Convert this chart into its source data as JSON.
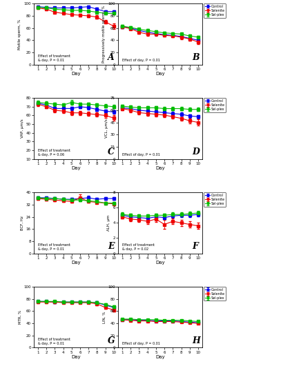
{
  "days": [
    1,
    2,
    3,
    4,
    5,
    6,
    7,
    8,
    9,
    10
  ],
  "panels": [
    {
      "label": "A",
      "ylabel": "Motile sperm, %",
      "effect_line1": "Effect of treatment",
      "effect_line2": "& day, P = 0.01",
      "ylim": [
        0,
        100
      ],
      "yticks": [
        0,
        20,
        40,
        60,
        80,
        100
      ],
      "control": [
        95,
        94,
        93,
        93,
        93,
        94,
        95,
        91,
        87,
        87
      ],
      "selenite": [
        93,
        91,
        86,
        84,
        82,
        81,
        80,
        78,
        70,
        63
      ],
      "selplex": [
        94,
        93,
        91,
        90,
        89,
        89,
        88,
        86,
        84,
        84
      ],
      "control_err": [
        1.5,
        1.5,
        1.5,
        1.5,
        1.5,
        1.5,
        1.5,
        2,
        2,
        2
      ],
      "selenite_err": [
        1.5,
        2,
        2,
        2,
        2,
        2,
        2,
        3,
        3,
        4
      ],
      "selplex_err": [
        1.5,
        1.5,
        1.5,
        1.5,
        1.5,
        2,
        2,
        2,
        2,
        2
      ]
    },
    {
      "label": "B",
      "ylabel": "Progressively motile sperm, %",
      "effect_line1": "Effect of day, P = 0.01",
      "effect_line2": "",
      "ylim": [
        0,
        100
      ],
      "yticks": [
        0,
        20,
        40,
        60,
        80,
        100
      ],
      "control": [
        62,
        60,
        56,
        53,
        51,
        49,
        48,
        46,
        43,
        40
      ],
      "selenite": [
        62,
        59,
        53,
        50,
        50,
        48,
        47,
        45,
        42,
        37
      ],
      "selplex": [
        63,
        61,
        58,
        56,
        54,
        52,
        51,
        50,
        47,
        45
      ],
      "control_err": [
        2,
        2,
        2,
        2,
        2,
        2,
        2,
        2,
        2,
        2
      ],
      "selenite_err": [
        2,
        2,
        2.5,
        2.5,
        2.5,
        2.5,
        2.5,
        3,
        3,
        3
      ],
      "selplex_err": [
        2,
        2,
        2,
        2,
        2,
        2,
        2,
        2,
        2,
        2
      ]
    },
    {
      "label": "C",
      "ylabel": "VAP, μm/s",
      "effect_line1": "Effect of treatment",
      "effect_line2": "& day, P = 0.06",
      "ylim": [
        10,
        80
      ],
      "yticks": [
        10,
        20,
        30,
        40,
        50,
        60,
        70,
        80
      ],
      "control": [
        74,
        72,
        68,
        68,
        68,
        70,
        69,
        67,
        65,
        64
      ],
      "selenite": [
        73,
        70,
        66,
        65,
        63,
        63,
        62,
        61,
        60,
        57
      ],
      "selplex": [
        75,
        74,
        73,
        72,
        75,
        73,
        73,
        72,
        71,
        70
      ],
      "control_err": [
        2,
        2,
        2,
        2,
        2,
        2,
        2,
        2,
        2,
        2
      ],
      "selenite_err": [
        2,
        2,
        2.5,
        2.5,
        2.5,
        2.5,
        2.5,
        2.5,
        2.5,
        3
      ],
      "selplex_err": [
        2,
        2,
        2,
        2,
        3,
        2,
        2,
        2,
        2,
        2
      ]
    },
    {
      "label": "D",
      "ylabel": "VCL, μm/s",
      "effect_line1": "Effect of day, P = 0.01",
      "effect_line2": "",
      "ylim": [
        0,
        75
      ],
      "yticks": [
        0,
        15,
        30,
        45,
        60,
        75
      ],
      "control": [
        63,
        62,
        60,
        59,
        58,
        57,
        56,
        55,
        53,
        52
      ],
      "selenite": [
        62,
        60,
        57,
        56,
        55,
        54,
        52,
        50,
        47,
        45
      ],
      "selplex": [
        65,
        64,
        63,
        63,
        63,
        62,
        62,
        62,
        61,
        61
      ],
      "control_err": [
        2,
        2,
        2,
        2,
        2,
        2,
        2,
        2,
        2,
        2
      ],
      "selenite_err": [
        2,
        2.5,
        2.5,
        2.5,
        2.5,
        2.5,
        2.5,
        3,
        3,
        3.5
      ],
      "selplex_err": [
        2,
        2,
        2,
        2,
        2,
        2,
        2,
        2,
        2,
        2
      ]
    },
    {
      "label": "E",
      "ylabel": "BCF, Hz",
      "effect_line1": "Effect of treatment",
      "effect_line2": "& day, P = 0.01",
      "ylim": [
        0,
        40
      ],
      "yticks": [
        0,
        8,
        16,
        24,
        32,
        40
      ],
      "control": [
        36.5,
        36.5,
        36,
        35.5,
        35.5,
        36,
        36.5,
        35.5,
        36,
        36
      ],
      "selenite": [
        36,
        35.5,
        35,
        34.5,
        34,
        36.5,
        34,
        33.5,
        33,
        32.5
      ],
      "selplex": [
        36.5,
        36,
        36,
        35.5,
        35,
        35,
        34.5,
        34,
        33,
        33
      ],
      "control_err": [
        0.8,
        0.8,
        0.8,
        0.8,
        0.8,
        0.8,
        1.2,
        0.8,
        0.8,
        0.8
      ],
      "selenite_err": [
        0.8,
        0.8,
        0.8,
        0.8,
        0.8,
        2,
        0.8,
        0.8,
        0.8,
        0.8
      ],
      "selplex_err": [
        0.8,
        0.8,
        0.8,
        0.8,
        0.8,
        0.8,
        0.8,
        0.8,
        0.8,
        0.8
      ]
    },
    {
      "label": "F",
      "ylabel": "ALH, μm",
      "effect_line1": "Effect of treatment",
      "effect_line2": "& day, P = 0.02",
      "ylim": [
        0,
        8
      ],
      "yticks": [
        0,
        2,
        4,
        6,
        8
      ],
      "control": [
        5.0,
        4.8,
        4.7,
        4.6,
        4.8,
        4.7,
        4.9,
        5.0,
        5.0,
        5.1
      ],
      "selenite": [
        4.8,
        4.5,
        4.4,
        4.2,
        4.5,
        3.8,
        4.2,
        4.0,
        3.8,
        3.6
      ],
      "selplex": [
        5.1,
        5.0,
        4.9,
        4.9,
        5.0,
        5.0,
        5.1,
        5.1,
        5.2,
        5.3
      ],
      "control_err": [
        0.25,
        0.25,
        0.25,
        0.25,
        0.25,
        0.25,
        0.25,
        0.25,
        0.25,
        0.25
      ],
      "selenite_err": [
        0.25,
        0.25,
        0.25,
        0.35,
        0.35,
        0.6,
        0.35,
        0.4,
        0.4,
        0.4
      ],
      "selplex_err": [
        0.25,
        0.25,
        0.25,
        0.25,
        0.25,
        0.25,
        0.25,
        0.25,
        0.25,
        0.25
      ]
    },
    {
      "label": "G",
      "ylabel": "MTR, %",
      "effect_line1": "Effect of treatment",
      "effect_line2": "& day, P = 0.01",
      "ylim": [
        0,
        100
      ],
      "yticks": [
        0,
        20,
        40,
        60,
        80,
        100
      ],
      "control": [
        76,
        76,
        75,
        75,
        75,
        75,
        75,
        74,
        70,
        66
      ],
      "selenite": [
        75,
        75,
        75,
        74,
        74,
        74,
        74,
        72,
        66,
        62
      ],
      "selplex": [
        76,
        76,
        76,
        75,
        75,
        75,
        75,
        74,
        71,
        67
      ],
      "control_err": [
        1.5,
        1.5,
        1.5,
        1.5,
        1.5,
        1.5,
        1.5,
        2,
        2,
        2
      ],
      "selenite_err": [
        1.5,
        1.5,
        1.5,
        1.5,
        1.5,
        1.5,
        1.5,
        2,
        2.5,
        3
      ],
      "selplex_err": [
        1.5,
        1.5,
        1.5,
        1.5,
        1.5,
        1.5,
        1.5,
        2,
        2,
        2
      ]
    },
    {
      "label": "H",
      "ylabel": "LIN, %",
      "effect_line1": "Effect of day, P = 0.01",
      "effect_line2": "",
      "ylim": [
        0,
        100
      ],
      "yticks": [
        0,
        20,
        40,
        60,
        80,
        100
      ],
      "control": [
        46,
        46,
        45,
        45,
        44,
        44,
        44,
        43,
        42,
        41
      ],
      "selenite": [
        46,
        45,
        44,
        44,
        43,
        43,
        43,
        42,
        41,
        40
      ],
      "selplex": [
        47,
        47,
        46,
        46,
        46,
        45,
        45,
        45,
        44,
        43
      ],
      "control_err": [
        1,
        1,
        1,
        1,
        1,
        1,
        1,
        1,
        1,
        1
      ],
      "selenite_err": [
        1,
        1,
        1,
        1,
        1,
        1,
        1,
        1,
        1,
        1
      ],
      "selplex_err": [
        1,
        1,
        1,
        1,
        1,
        1,
        1,
        1,
        1,
        1
      ]
    }
  ],
  "colors": {
    "control": "#0000EE",
    "selenite": "#EE0000",
    "selplex": "#00BB00"
  },
  "legend_labels": [
    "Control",
    "Selenite",
    "Sel-plex"
  ],
  "xlabel": "Day",
  "bg_color": "#FFFFFF",
  "panel_bg": "#FFFFFF"
}
